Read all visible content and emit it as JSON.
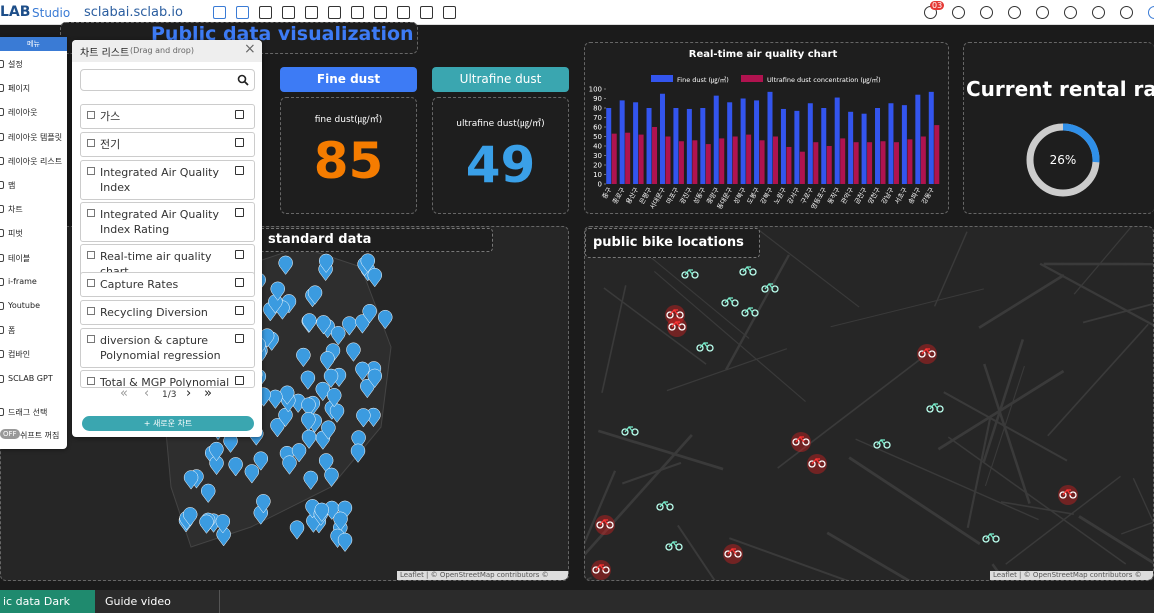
{
  "top_bar": {
    "logo": "LAB",
    "logo_sub": "Studio",
    "url": "sclabai.sclab.io",
    "notification_count": "03"
  },
  "left_menu": {
    "header": "메뉴",
    "items": [
      "설정",
      "페이지",
      "레이아웃",
      "레이아웃 템플릿",
      "레이아웃 리스트",
      "맵",
      "차트",
      "피벗",
      "테이블",
      "i-frame",
      "Youtube",
      "폼",
      "컴바인",
      "SCLAB GPT",
      "드래그 선택"
    ],
    "toggle": "OFF",
    "toggle_label": "쉬프트 꺼짐"
  },
  "chart_list": {
    "title": "차트 리스트",
    "subtitle": "(Drag and drop)",
    "items": [
      "가스",
      "전기",
      "Integrated Air Quality Index",
      "Integrated Air Quality Index Rating",
      "Real-time air quality chart",
      "Capture Rates",
      "Recycling Diversion",
      "diversion & capture Polynomial regression",
      "Total & MGP Polynomial re"
    ],
    "page": "1/3",
    "new_button": "+ 새로운 차트"
  },
  "dashboard": {
    "title": "Public data visualization",
    "fine_dust_tab": "Fine dust",
    "ultrafine_dust_tab": "Ultrafine dust",
    "fine_dust_label": "fine dust(㎍/㎥)",
    "fine_dust_value": 85,
    "ultrafine_dust_label": "ultrafine dust(㎍/㎥)",
    "ultrafine_dust_value": 49,
    "rental_title": "Current rental rate",
    "rental_rate": 26,
    "rental_rate_label": "26%",
    "map_left_title": "standard data",
    "map_right_title": "public bike locations",
    "attribution": "Leaflet | © OpenStreetMap contributors © CARTO"
  },
  "chart_data": {
    "type": "bar",
    "title": "Real-time air quality chart",
    "categories": [
      "중구",
      "종로구",
      "용산구",
      "은평구",
      "서대문구",
      "마포구",
      "광진구",
      "성동구",
      "중랑구",
      "동대문구",
      "성북구",
      "도봉구",
      "강북구",
      "노원구",
      "강서구",
      "구로구",
      "영등포구",
      "동작구",
      "관악구",
      "금천구",
      "양천구",
      "강남구",
      "서초구",
      "송파구",
      "강동구"
    ],
    "series": [
      {
        "name": "Fine dust (㎍/㎥)",
        "color": "#3355ee",
        "values": [
          80,
          88,
          86,
          80,
          95,
          80,
          79,
          80,
          93,
          86,
          90,
          88,
          97,
          79,
          77,
          85,
          80,
          91,
          76,
          74,
          80,
          85,
          83,
          94,
          97
        ]
      },
      {
        "name": "Ultrafine dust concentration (㎍/㎥)",
        "color": "#b0134f",
        "values": [
          53,
          54,
          52,
          60,
          50,
          45,
          46,
          42,
          48,
          50,
          52,
          46,
          50,
          39,
          34,
          44,
          40,
          48,
          44,
          44,
          45,
          44,
          47,
          50,
          62
        ]
      }
    ],
    "ylim": [
      0,
      100
    ],
    "yticks": [
      0,
      10,
      20,
      30,
      40,
      50,
      60,
      70,
      80,
      90,
      100
    ]
  },
  "bottom_tabs": [
    "ic data Dark",
    "Guide video"
  ]
}
